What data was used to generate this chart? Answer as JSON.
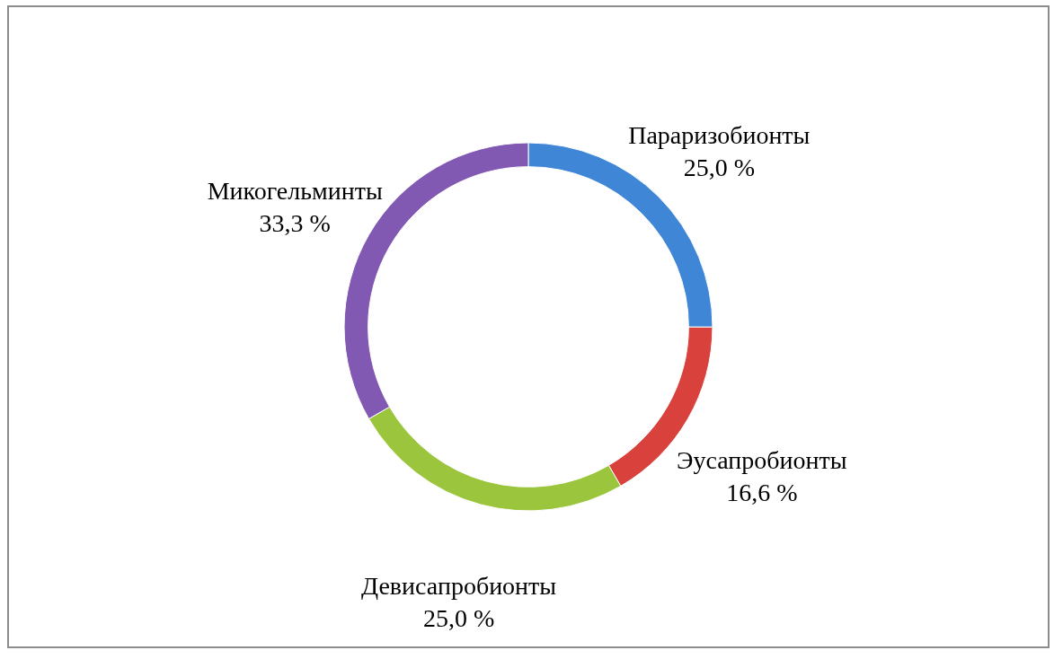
{
  "chart_data": {
    "type": "donut",
    "categories": [
      "Параризобионты",
      "Эусапробионты",
      "Девисапробионты",
      "Микогельминты"
    ],
    "values": [
      25.0,
      16.6,
      25.0,
      33.3
    ],
    "value_labels": [
      "25,0 %",
      "16,6 %",
      "25,0 %",
      "33,3 %"
    ],
    "colors": [
      "#3f86d6",
      "#d9413c",
      "#9bc53d",
      "#8159b3"
    ]
  }
}
